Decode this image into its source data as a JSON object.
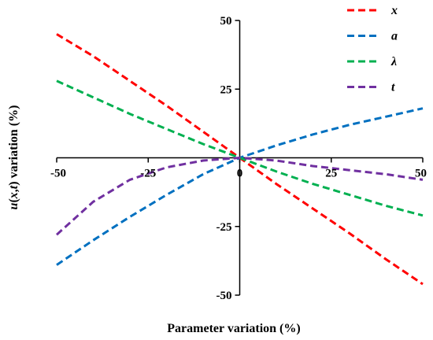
{
  "chart_data": {
    "type": "line",
    "xlabel": "Parameter variation  (%)",
    "ylabel_parts": [
      "u",
      "(",
      "x",
      ",",
      "t",
      ")  variation  (%)"
    ],
    "xlim": [
      -50,
      50
    ],
    "ylim": [
      -50,
      50
    ],
    "xticks": [
      -50,
      -25,
      0,
      25,
      50
    ],
    "yticks": [
      -50,
      -25,
      0,
      25,
      50
    ],
    "x_tick_labels": [
      "-50",
      "-25",
      "0",
      "25",
      "50"
    ],
    "y_tick_labels": [
      "-50",
      "-25",
      "0",
      "25",
      "50"
    ],
    "grid": false,
    "legend_position": "top-right",
    "x": [
      -50,
      -40,
      -30,
      -20,
      -10,
      0,
      10,
      20,
      30,
      40,
      50
    ],
    "series": [
      {
        "name": "x",
        "color": "#ff0000",
        "values": [
          45,
          37,
          28,
          19,
          9.5,
          0,
          -9.5,
          -18.5,
          -27.5,
          -37,
          -46
        ]
      },
      {
        "name": "a",
        "color": "#0070c0",
        "values": [
          -39,
          -30,
          -21.5,
          -13.5,
          -6,
          0,
          4.5,
          8.5,
          12,
          15,
          18
        ]
      },
      {
        "name": "λ",
        "color": "#00b050",
        "values": [
          28,
          22,
          16,
          10.5,
          5,
          0,
          -5,
          -9.5,
          -13.5,
          -17.5,
          -21
        ]
      },
      {
        "name": "t",
        "color": "#7030a0",
        "values": [
          -28,
          -16,
          -8,
          -3.5,
          -1,
          0,
          -1,
          -3,
          -4.5,
          -6,
          -8
        ]
      }
    ]
  }
}
